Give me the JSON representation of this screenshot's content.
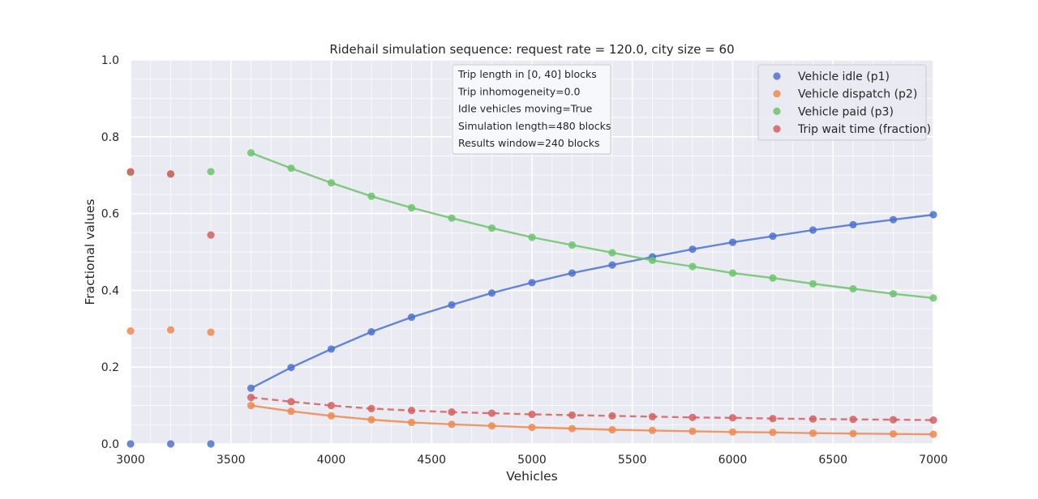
{
  "chart_data": {
    "type": "line",
    "title": "Ridehail simulation sequence: request rate = 120.0, city size = 60",
    "xlabel": "Vehicles",
    "ylabel": "Fractional values",
    "xlim": [
      3000,
      7000
    ],
    "ylim": [
      0,
      1
    ],
    "xticks": [
      3000,
      3500,
      4000,
      4500,
      5000,
      5500,
      6000,
      6500,
      7000
    ],
    "yticks": [
      0.0,
      0.2,
      0.4,
      0.6,
      0.8,
      1.0
    ],
    "xtick_labels": [
      "3000",
      "3500",
      "4000",
      "4500",
      "5000",
      "5500",
      "6000",
      "6500",
      "7000"
    ],
    "ytick_labels": [
      "0.0",
      "0.2",
      "0.4",
      "0.6",
      "0.8",
      "1.0"
    ],
    "grid": true,
    "legend_position": "top-right",
    "annotation_lines": [
      "Trip length in [0, 40] blocks",
      "Trip inhomogeneity=0.0",
      "Idle vehicles moving=True",
      "Simulation length=480 blocks",
      "Results window=240 blocks"
    ],
    "series": [
      {
        "name": "Vehicle idle (p1)",
        "color": "#4c72d0",
        "line_style": "solid",
        "points": [
          [
            3000,
            0.0
          ],
          [
            3200,
            0.0
          ],
          [
            3400,
            0.0
          ]
        ],
        "line_points": [
          [
            3600,
            0.145
          ],
          [
            3800,
            0.199
          ],
          [
            4000,
            0.247
          ],
          [
            4200,
            0.292
          ],
          [
            4400,
            0.33
          ],
          [
            4600,
            0.362
          ],
          [
            4800,
            0.393
          ],
          [
            5000,
            0.42
          ],
          [
            5200,
            0.445
          ],
          [
            5400,
            0.466
          ],
          [
            5600,
            0.487
          ],
          [
            5800,
            0.507
          ],
          [
            6000,
            0.525
          ],
          [
            6200,
            0.541
          ],
          [
            6400,
            0.557
          ],
          [
            6600,
            0.571
          ],
          [
            6800,
            0.584
          ],
          [
            7000,
            0.597
          ]
        ]
      },
      {
        "name": "Vehicle dispatch (p2)",
        "color": "#ee8a50",
        "line_style": "solid",
        "points": [
          [
            3000,
            0.294
          ],
          [
            3200,
            0.297
          ],
          [
            3400,
            0.291
          ]
        ],
        "line_points": [
          [
            3600,
            0.1
          ],
          [
            3800,
            0.085
          ],
          [
            4000,
            0.073
          ],
          [
            4200,
            0.063
          ],
          [
            4400,
            0.056
          ],
          [
            4600,
            0.051
          ],
          [
            4800,
            0.047
          ],
          [
            5000,
            0.043
          ],
          [
            5200,
            0.04
          ],
          [
            5400,
            0.037
          ],
          [
            5600,
            0.035
          ],
          [
            5800,
            0.033
          ],
          [
            6000,
            0.031
          ],
          [
            6200,
            0.03
          ],
          [
            6400,
            0.028
          ],
          [
            6600,
            0.027
          ],
          [
            6800,
            0.026
          ],
          [
            7000,
            0.025
          ]
        ]
      },
      {
        "name": "Vehicle paid (p3)",
        "color": "#6cc46c",
        "line_style": "solid",
        "points": [
          [
            3000,
            0.707
          ],
          [
            3200,
            0.703
          ],
          [
            3400,
            0.709
          ]
        ],
        "line_points": [
          [
            3600,
            0.758
          ],
          [
            3800,
            0.718
          ],
          [
            4000,
            0.68
          ],
          [
            4200,
            0.645
          ],
          [
            4400,
            0.615
          ],
          [
            4600,
            0.588
          ],
          [
            4800,
            0.562
          ],
          [
            5000,
            0.538
          ],
          [
            5200,
            0.518
          ],
          [
            5400,
            0.498
          ],
          [
            5600,
            0.478
          ],
          [
            5800,
            0.462
          ],
          [
            6000,
            0.445
          ],
          [
            6200,
            0.432
          ],
          [
            6400,
            0.417
          ],
          [
            6600,
            0.404
          ],
          [
            6800,
            0.391
          ],
          [
            7000,
            0.38
          ]
        ]
      },
      {
        "name": "Trip wait time (fraction)",
        "color": "#d65f5f",
        "line_style": "dashed",
        "points": [
          [
            3000,
            0.709
          ],
          [
            3200,
            0.703
          ],
          [
            3400,
            0.544
          ]
        ],
        "line_points": [
          [
            3600,
            0.121
          ],
          [
            3800,
            0.11
          ],
          [
            4000,
            0.1
          ],
          [
            4200,
            0.092
          ],
          [
            4400,
            0.087
          ],
          [
            4600,
            0.083
          ],
          [
            4800,
            0.08
          ],
          [
            5000,
            0.077
          ],
          [
            5200,
            0.075
          ],
          [
            5400,
            0.073
          ],
          [
            5600,
            0.071
          ],
          [
            5800,
            0.069
          ],
          [
            6000,
            0.068
          ],
          [
            6200,
            0.066
          ],
          [
            6400,
            0.065
          ],
          [
            6600,
            0.064
          ],
          [
            6800,
            0.063
          ],
          [
            7000,
            0.062
          ]
        ]
      }
    ]
  }
}
